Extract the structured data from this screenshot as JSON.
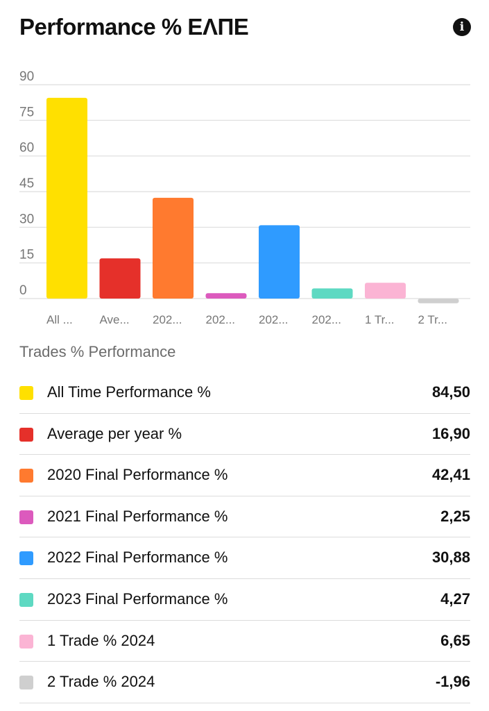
{
  "header": {
    "title": "Performance % ΕΛΠΕ",
    "info_icon": "info-icon"
  },
  "legend_title": "Trades % Performance",
  "chart_data": {
    "type": "bar",
    "categories": [
      "All Time Performance %",
      "Average per year %",
      "2020 Final Performance %",
      "2021 Final Performance %",
      "2022 Final Performance %",
      "2023 Final Performance %",
      "1 Trade % 2024",
      "2 Trade % 2024"
    ],
    "tick_labels": [
      "All ...",
      "Ave...",
      "202...",
      "202...",
      "202...",
      "202...",
      "1 Tr...",
      "2 Tr..."
    ],
    "values": [
      84.5,
      16.9,
      42.41,
      2.25,
      30.88,
      4.27,
      6.65,
      -1.96
    ],
    "display_values": [
      "84,50",
      "16,90",
      "42,41",
      "2,25",
      "30,88",
      "4,27",
      "6,65",
      "-1,96"
    ],
    "colors": [
      "#FFE000",
      "#E5302A",
      "#FF7A2F",
      "#DC5ABD",
      "#2F9BFF",
      "#5ED9C2",
      "#FBB4D4",
      "#CFCFCF"
    ],
    "y_ticks": [
      0,
      15,
      30,
      45,
      60,
      75,
      90
    ],
    "ylim": [
      0,
      90
    ],
    "grid": true,
    "legend": "below-chart"
  }
}
